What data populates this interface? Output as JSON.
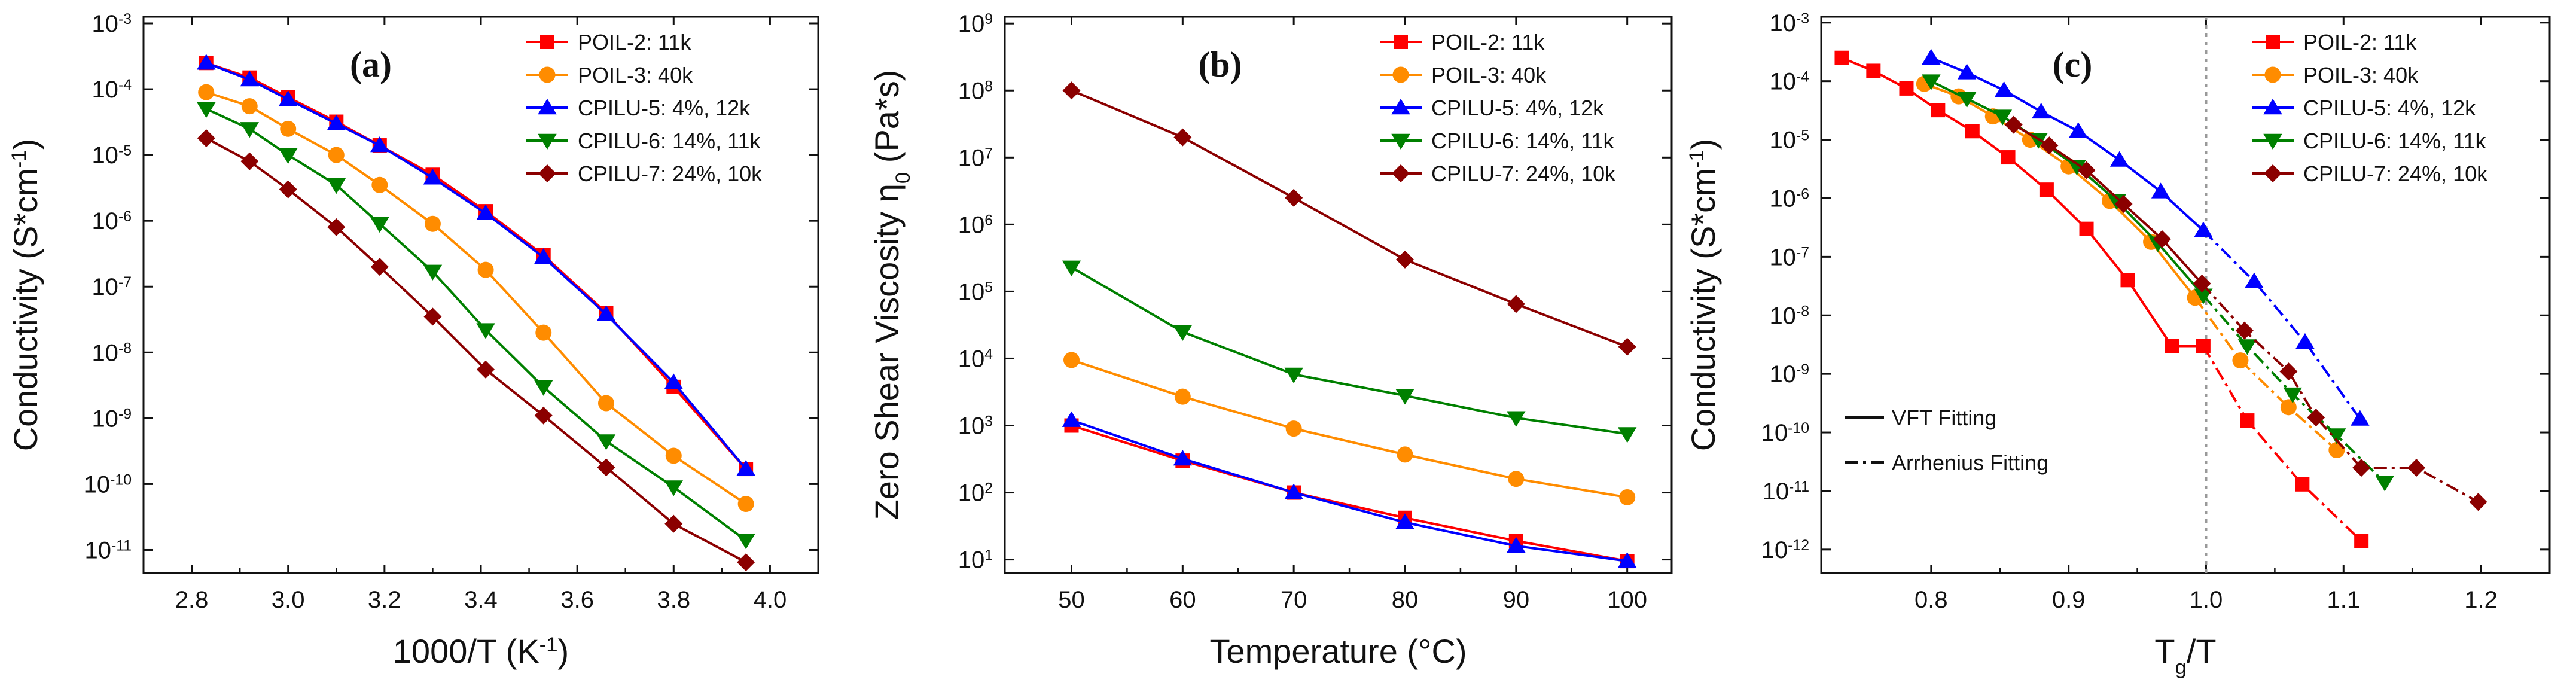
{
  "chart_data": [
    {
      "type": "line",
      "panel_label": "(a)",
      "xlabel": "1000/T (K",
      "xlabel_sup": "-1",
      "xlabel_end": ")",
      "ylabel": "Conductivity (S*cm",
      "ylabel_sup": "-1",
      "ylabel_end": ")",
      "xscale": "linear",
      "yscale": "log",
      "xlim": [
        2.7,
        4.1
      ],
      "ylim_exp": [
        -11.35,
        -2.9
      ],
      "xticks": [
        2.8,
        3.0,
        3.2,
        3.4,
        3.6,
        3.8,
        4.0
      ],
      "xtick_labels": [
        "2.8",
        "3.0",
        "3.2",
        "3.4",
        "3.6",
        "3.8",
        "4.0"
      ],
      "yticks_exp": [
        -11,
        -10,
        -9,
        -8,
        -7,
        -6,
        -5,
        -4,
        -3
      ],
      "ytick_base": "10",
      "ytick_exp_labels": [
        "-11",
        "-10",
        "-9",
        "-8",
        "-7",
        "-6",
        "-5",
        "-4",
        "-3"
      ],
      "legend": "top-right",
      "series": [
        {
          "name": "POIL-2: 11k",
          "color": "#ff0000",
          "marker": "square",
          "x": [
            2.83,
            2.92,
            3.0,
            3.1,
            3.19,
            3.3,
            3.41,
            3.53,
            3.66,
            3.8,
            3.95
          ],
          "y": [
            0.00025,
            0.00015,
            7.5e-05,
            3.2e-05,
            1.4e-05,
            5e-06,
            1.4e-06,
            3e-07,
            4e-08,
            3e-09,
            1.7e-10
          ]
        },
        {
          "name": "POIL-3: 40k",
          "color": "#ff8c00",
          "marker": "circle",
          "x": [
            2.83,
            2.92,
            3.0,
            3.1,
            3.19,
            3.3,
            3.41,
            3.53,
            3.66,
            3.8,
            3.95
          ],
          "y": [
            9e-05,
            5.5e-05,
            2.5e-05,
            1e-05,
            3.5e-06,
            9e-07,
            1.8e-07,
            2e-08,
            1.7e-09,
            2.7e-10,
            5e-11
          ]
        },
        {
          "name": "CPILU-5: 4%, 12k",
          "color": "#0000ff",
          "marker": "triangle-up",
          "x": [
            2.83,
            2.92,
            3.0,
            3.1,
            3.19,
            3.3,
            3.41,
            3.53,
            3.66,
            3.8,
            3.95
          ],
          "y": [
            0.00025,
            0.00014,
            7e-05,
            3e-05,
            1.4e-05,
            4.5e-06,
            1.3e-06,
            2.8e-07,
            3.8e-08,
            3.5e-09,
            1.7e-10
          ]
        },
        {
          "name": "CPILU-6: 14%, 11k",
          "color": "#008000",
          "marker": "triangle-down",
          "x": [
            2.83,
            2.92,
            3.0,
            3.1,
            3.19,
            3.3,
            3.41,
            3.53,
            3.66,
            3.8,
            3.95
          ],
          "y": [
            5e-05,
            2.5e-05,
            1e-05,
            3.5e-06,
            9e-07,
            1.7e-07,
            2.2e-08,
            3e-09,
            4.5e-10,
            9e-11,
            1.4e-11
          ]
        },
        {
          "name": "CPILU-7: 24%, 10k",
          "color": "#8b0000",
          "marker": "diamond",
          "x": [
            2.83,
            2.92,
            3.0,
            3.1,
            3.19,
            3.3,
            3.41,
            3.53,
            3.66,
            3.8,
            3.95
          ],
          "y": [
            1.8e-05,
            8e-06,
            3e-06,
            8e-07,
            2e-07,
            3.5e-08,
            5.5e-09,
            1.1e-09,
            1.8e-10,
            2.5e-11,
            6.5e-12
          ]
        }
      ]
    },
    {
      "type": "line",
      "panel_label": "(b)",
      "xlabel": "Temperature (°C)",
      "ylabel": "Zero Shear Viscosity η",
      "ylabel_sub": "0",
      "ylabel_end": " (Pa*s)",
      "xscale": "linear",
      "yscale": "log",
      "xlim": [
        44,
        104
      ],
      "ylim_exp": [
        0.8,
        9.1
      ],
      "xticks": [
        50,
        60,
        70,
        80,
        90,
        100
      ],
      "xtick_labels": [
        "50",
        "60",
        "70",
        "80",
        "90",
        "100"
      ],
      "yticks_exp": [
        1,
        2,
        3,
        4,
        5,
        6,
        7,
        8,
        9
      ],
      "ytick_base": "10",
      "ytick_exp_labels": [
        "1",
        "2",
        "3",
        "4",
        "5",
        "6",
        "7",
        "8",
        "9"
      ],
      "legend": "top-right",
      "series": [
        {
          "name": "POIL-2: 11k",
          "color": "#ff0000",
          "marker": "square",
          "x": [
            50,
            60,
            70,
            80,
            90,
            100
          ],
          "y": [
            1000,
            300,
            100,
            42,
            19,
            9.5
          ]
        },
        {
          "name": "POIL-3: 40k",
          "color": "#ff8c00",
          "marker": "circle",
          "x": [
            50,
            60,
            70,
            80,
            90,
            100
          ],
          "y": [
            9500,
            2700,
            900,
            370,
            160,
            85
          ]
        },
        {
          "name": "CPILU-5: 4%, 12k",
          "color": "#0000ff",
          "marker": "triangle-up",
          "x": [
            50,
            60,
            70,
            80,
            90,
            100
          ],
          "y": [
            1200,
            320,
            100,
            36,
            16,
            9.5
          ]
        },
        {
          "name": "CPILU-6: 14%, 11k",
          "color": "#008000",
          "marker": "triangle-down",
          "x": [
            50,
            60,
            70,
            80,
            90,
            100
          ],
          "y": [
            230000,
            25000,
            5800,
            2800,
            1300,
            750
          ]
        },
        {
          "name": "CPILU-7: 24%, 10k",
          "color": "#8b0000",
          "marker": "diamond",
          "x": [
            50,
            60,
            70,
            80,
            90,
            100
          ],
          "y": [
            100000000.0,
            20000000.0,
            2500000.0,
            300000.0,
            65000.0,
            15000.0
          ]
        }
      ]
    },
    {
      "type": "scatter",
      "panel_label": "(c)",
      "xlabel": "T",
      "xlabel_sub": "g",
      "xlabel_end": "/T",
      "ylabel": "Conductivity (S*cm",
      "ylabel_sup": "-1",
      "ylabel_end": ")",
      "xscale": "linear",
      "yscale": "log",
      "xlim": [
        0.72,
        1.25
      ],
      "ylim_exp": [
        -12.4,
        -2.9
      ],
      "xticks": [
        0.8,
        0.9,
        1.0,
        1.1,
        1.2
      ],
      "xtick_labels": [
        "0.8",
        "0.9",
        "1.0",
        "1.1",
        "1.2"
      ],
      "yticks_exp": [
        -12,
        -11,
        -10,
        -9,
        -8,
        -7,
        -6,
        -5,
        -4,
        -3
      ],
      "ytick_base": "10",
      "ytick_exp_labels": [
        "-12",
        "-11",
        "-10",
        "-9",
        "-8",
        "-7",
        "-6",
        "-5",
        "-4",
        "-3"
      ],
      "vline_x": 1.0,
      "legend": "top-right",
      "fit_legend": [
        "VFT Fitting",
        "Arrhenius Fitting"
      ],
      "series": [
        {
          "name": "POIL-2: 11k",
          "color": "#ff0000",
          "marker": "square",
          "x": [
            0.735,
            0.758,
            0.782,
            0.805,
            0.83,
            0.856,
            0.884,
            0.913,
            0.943,
            0.975,
            0.998,
            1.03,
            1.07,
            1.113
          ],
          "y": [
            0.00025,
            0.00015,
            7.5e-05,
            3.2e-05,
            1.4e-05,
            5e-06,
            1.4e-06,
            3e-07,
            4e-08,
            3e-09,
            3e-09,
            1.6e-10,
            1.3e-11,
            1.4e-12
          ]
        },
        {
          "name": "POIL-3: 40k",
          "color": "#ff8c00",
          "marker": "circle",
          "x": [
            0.795,
            0.82,
            0.845,
            0.872,
            0.9,
            0.93,
            0.96,
            0.992,
            1.025,
            1.06,
            1.095
          ],
          "y": [
            9e-05,
            5.5e-05,
            2.5e-05,
            1e-05,
            3.5e-06,
            9e-07,
            1.8e-07,
            2e-08,
            1.7e-09,
            2.7e-10,
            5e-11
          ]
        },
        {
          "name": "CPILU-5: 4%, 12k",
          "color": "#0000ff",
          "marker": "triangle-up",
          "x": [
            0.8,
            0.826,
            0.853,
            0.88,
            0.907,
            0.937,
            0.967,
            0.998,
            1.035,
            1.072,
            1.112
          ],
          "y": [
            0.00025,
            0.00014,
            7e-05,
            3e-05,
            1.4e-05,
            4.5e-06,
            1.3e-06,
            2.8e-07,
            3.8e-08,
            3.5e-09,
            1.7e-10
          ]
        },
        {
          "name": "CPILU-6: 14%, 11k",
          "color": "#008000",
          "marker": "triangle-down",
          "x": [
            0.8,
            0.826,
            0.852,
            0.878,
            0.906,
            0.935,
            0.965,
            0.998,
            1.03,
            1.063,
            1.095,
            1.13
          ],
          "y": [
            0.0001,
            5e-05,
            2.5e-05,
            1e-05,
            3.5e-06,
            9e-07,
            1.7e-07,
            2.2e-08,
            3e-09,
            4.5e-10,
            9e-11,
            1.4e-11
          ]
        },
        {
          "name": "CPILU-7: 24%, 10k",
          "color": "#8b0000",
          "marker": "diamond",
          "x": [
            0.86,
            0.886,
            0.913,
            0.94,
            0.968,
            0.997,
            1.028,
            1.06,
            1.08,
            1.113,
            1.153,
            1.198
          ],
          "y": [
            1.8e-05,
            8e-06,
            3e-06,
            8e-07,
            2e-07,
            3.5e-08,
            5.5e-09,
            1.1e-09,
            1.8e-10,
            2.5e-11,
            2.5e-11,
            6.5e-12
          ]
        }
      ]
    }
  ]
}
